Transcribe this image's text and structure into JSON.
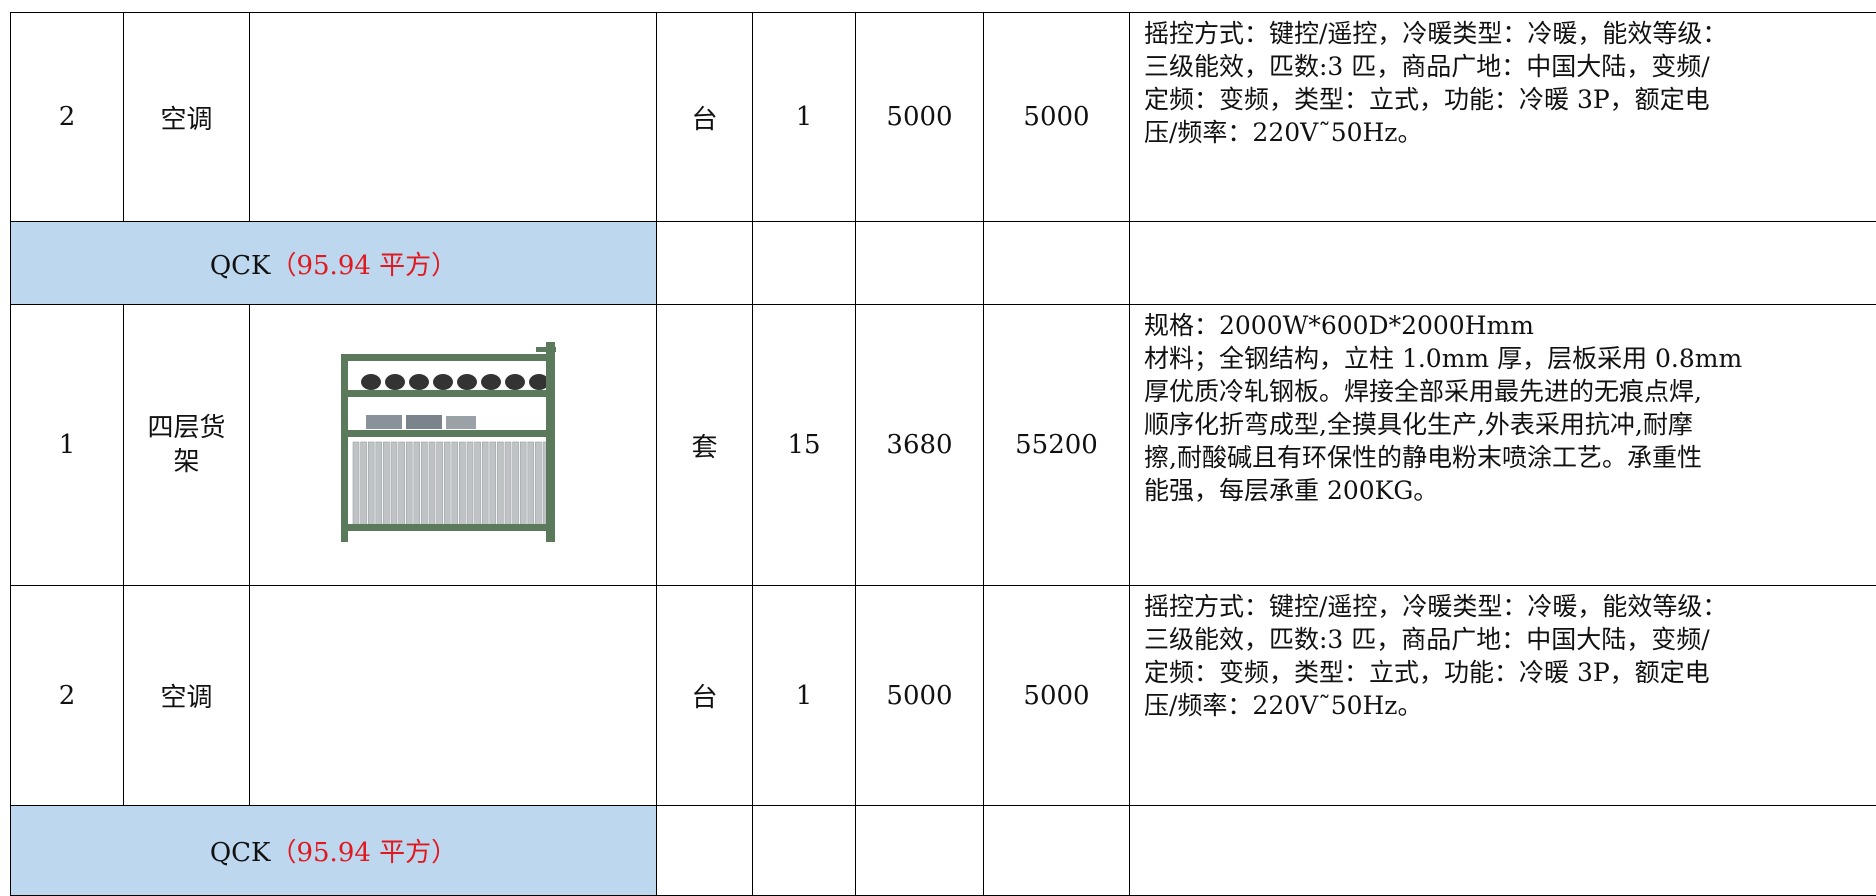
{
  "table": {
    "rows": [
      {
        "no": "2",
        "name": "空调",
        "unit": "台",
        "qty": "1",
        "price": "5000",
        "total": "5000",
        "desc": [
          "摇控方式：键控/遥控，冷暖类型：冷暖，能效等级：",
          "三级能效，匹数:3 匹，商品广地：中国大陆，变频/",
          "定频：变频，类型：立式，功能：冷暖 3P，额定电",
          "压/频率：220V˜50Hz。"
        ]
      },
      {
        "code": "QCK",
        "area": "（95.94 平方）"
      },
      {
        "no": "1",
        "name": "四层货架",
        "unit": "套",
        "qty": "15",
        "price": "3680",
        "total": "55200",
        "desc": [
          "规格：2000W*600D*2000Hmm",
          "材料；全钢结构，立柱 1.0mm 厚，层板采用 0.8mm",
          "厚优质冷轧钢板。焊接全部采用最先进的无痕点焊,",
          "顺序化折弯成型,全摸具化生产,外表采用抗冲,耐摩",
          "擦,耐酸碱且有环保性的静电粉末喷涂工艺。承重性",
          "能强，每层承重 200KG。"
        ]
      },
      {
        "no": "2",
        "name": "空调",
        "unit": "台",
        "qty": "1",
        "price": "5000",
        "total": "5000",
        "desc": [
          "摇控方式：键控/遥控，冷暖类型：冷暖，能效等级：",
          "三级能效，匹数:3 匹，商品广地：中国大陆，变频/",
          "定频：变频，类型：立式，功能：冷暖 3P，额定电",
          "压/频率：220V˜50Hz。"
        ]
      },
      {
        "code": "QCK",
        "area": "（95.94 平方）"
      }
    ]
  }
}
